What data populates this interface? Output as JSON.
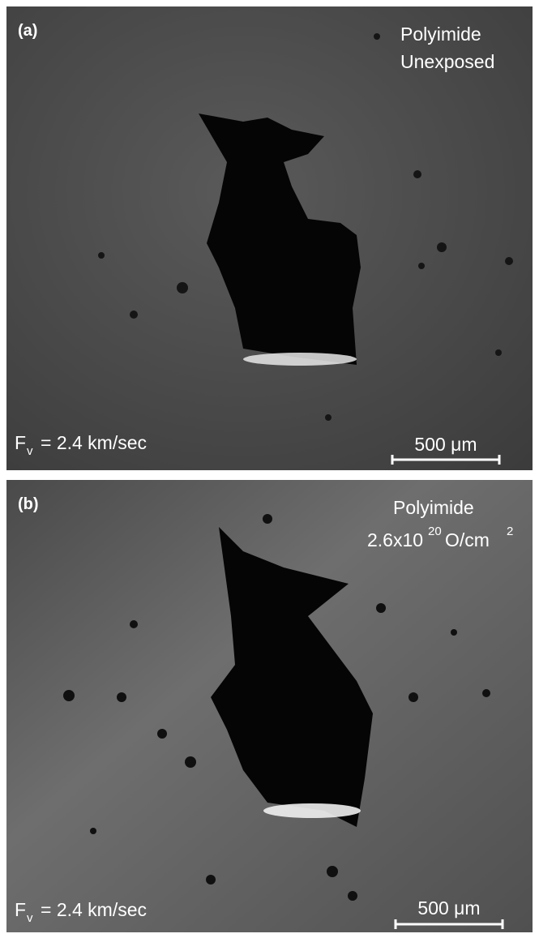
{
  "panels": [
    {
      "label": "(a)",
      "material": "Polyimide",
      "condition": "Unexposed",
      "velocity": {
        "symbol": "F",
        "subscript": "v",
        "text": "= 2.4 km/sec"
      },
      "scale_bar": "500 μm"
    },
    {
      "label": "(b)",
      "material": "Polyimide",
      "condition": {
        "base": "2.6x10",
        "exponent": "20",
        "unit": "O/cm",
        "unit_exponent": "2"
      },
      "velocity": {
        "symbol": "F",
        "subscript": "v",
        "text": "= 2.4 km/sec"
      },
      "scale_bar": "500 μm"
    }
  ]
}
